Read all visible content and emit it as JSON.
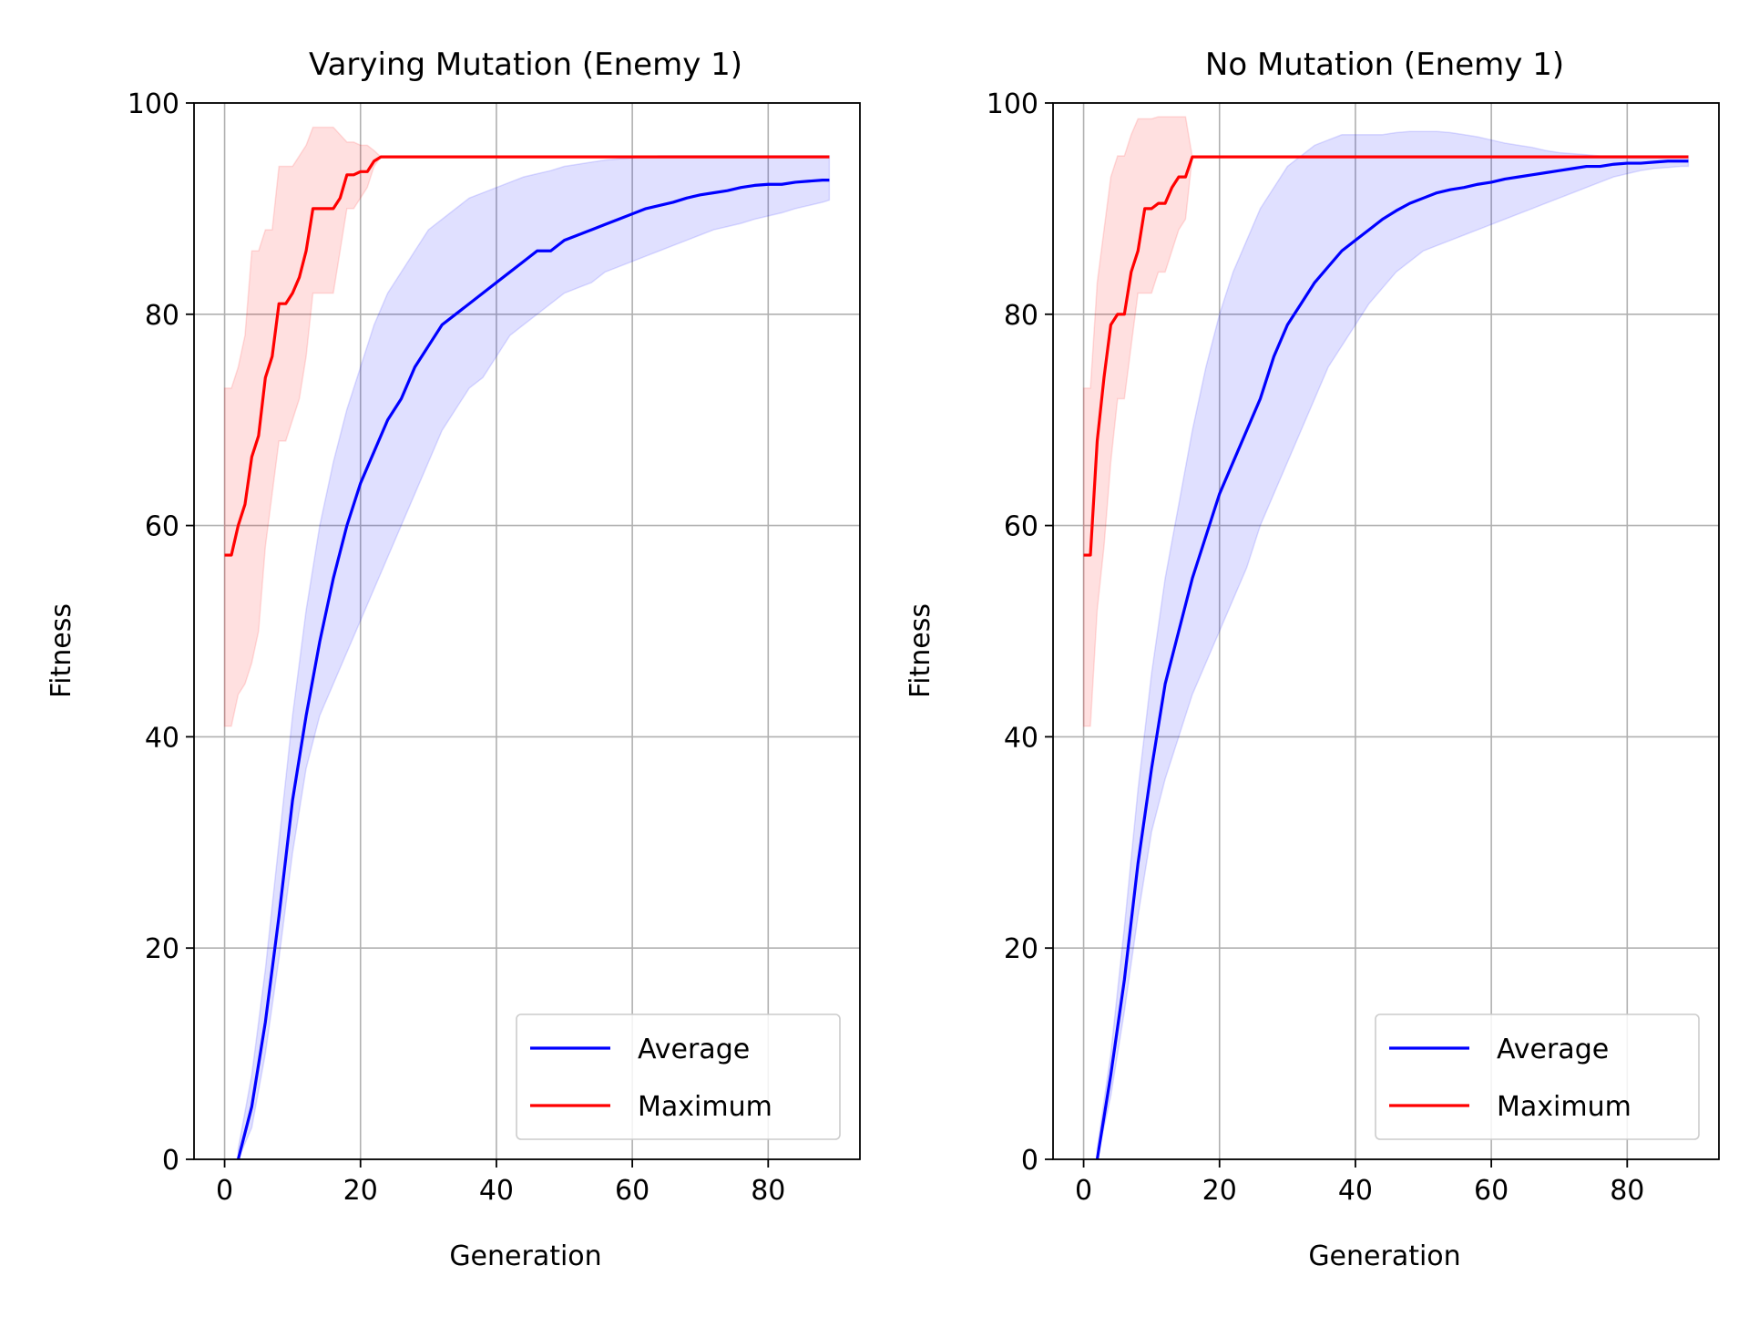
{
  "colors": {
    "average_line": "#0000ff",
    "maximum_line": "#ff0000",
    "average_band": "#0000ff",
    "maximum_band": "#ff0000",
    "grid": "#b0b0b0",
    "axes": "#000000"
  },
  "chart_data": [
    {
      "type": "line",
      "title": "Varying Mutation (Enemy 1)",
      "xlabel": "Generation",
      "ylabel": "Fitness",
      "xlim": [
        -4.5,
        93.5
      ],
      "ylim": [
        0,
        100
      ],
      "xticks": [
        0,
        20,
        40,
        60,
        80
      ],
      "yticks": [
        0,
        20,
        40,
        60,
        80,
        100
      ],
      "grid": true,
      "legend_position": "lower-right",
      "series": [
        {
          "name": "Average",
          "color": "#0000ff",
          "x": [
            2,
            4,
            6,
            8,
            10,
            12,
            14,
            16,
            18,
            20,
            22,
            24,
            26,
            28,
            30,
            32,
            34,
            36,
            38,
            40,
            42,
            44,
            46,
            48,
            50,
            52,
            54,
            56,
            58,
            60,
            62,
            64,
            66,
            68,
            70,
            72,
            74,
            76,
            78,
            80,
            82,
            84,
            86,
            88,
            89
          ],
          "values": [
            0,
            5,
            13,
            23,
            34,
            42,
            49,
            55,
            60,
            64,
            67,
            70,
            72,
            75,
            77,
            79,
            80,
            81,
            82,
            83,
            84,
            85,
            86,
            86,
            87,
            87.5,
            88,
            88.5,
            89,
            89.5,
            90,
            90.3,
            90.6,
            91,
            91.3,
            91.5,
            91.7,
            92,
            92.2,
            92.3,
            92.3,
            92.5,
            92.6,
            92.7,
            92.7
          ],
          "band_lower": [
            0,
            3,
            10,
            19,
            29,
            37,
            42,
            45,
            48,
            51,
            54,
            57,
            60,
            63,
            66,
            69,
            71,
            73,
            74,
            76,
            78,
            79,
            80,
            81,
            82,
            82.5,
            83,
            84,
            84.5,
            85,
            85.5,
            86,
            86.5,
            87,
            87.5,
            88,
            88.3,
            88.6,
            89,
            89.3,
            89.6,
            90,
            90.3,
            90.6,
            90.8
          ],
          "band_upper": [
            1,
            8,
            18,
            30,
            42,
            52,
            60,
            66,
            71,
            75,
            79,
            82,
            84,
            86,
            88,
            89,
            90,
            91,
            91.5,
            92,
            92.5,
            93,
            93.3,
            93.6,
            94,
            94.2,
            94.4,
            94.6,
            94.7,
            94.8,
            94.9,
            95,
            95,
            95,
            95,
            95,
            95,
            95,
            95,
            95,
            95,
            95,
            95,
            95,
            95
          ]
        },
        {
          "name": "Maximum",
          "color": "#ff0000",
          "x": [
            0,
            1,
            2,
            3,
            4,
            5,
            6,
            7,
            8,
            9,
            10,
            11,
            12,
            13,
            14,
            15,
            16,
            17,
            18,
            19,
            20,
            21,
            22,
            23,
            30,
            40,
            50,
            60,
            70,
            80,
            89
          ],
          "values": [
            57.2,
            57.2,
            60,
            62,
            66.5,
            68.5,
            74,
            76,
            81,
            81,
            82,
            83.5,
            86,
            90,
            90,
            90,
            90,
            91,
            93.2,
            93.2,
            93.5,
            93.5,
            94.5,
            94.9,
            94.9,
            94.9,
            94.9,
            94.9,
            94.9,
            94.9,
            94.9
          ],
          "band_lower": [
            41,
            41,
            44,
            45,
            47,
            50,
            58,
            63,
            68,
            68,
            70,
            72,
            76,
            82,
            82,
            82,
            82,
            86,
            90,
            90,
            91,
            92,
            94,
            94.9,
            94.9,
            94.9,
            94.9,
            94.9,
            94.9,
            94.9,
            94.9
          ],
          "band_upper": [
            73,
            73,
            75,
            78,
            86,
            86,
            88,
            88,
            94,
            94,
            94,
            95,
            96,
            97.7,
            97.7,
            97.7,
            97.7,
            97,
            96.3,
            96.3,
            96,
            96,
            95.5,
            94.9,
            94.9,
            94.9,
            94.9,
            94.9,
            94.9,
            94.9,
            94.9
          ]
        }
      ]
    },
    {
      "type": "line",
      "title": "No Mutation (Enemy 1)",
      "xlabel": "Generation",
      "ylabel": "Fitness",
      "xlim": [
        -4.5,
        93.5
      ],
      "ylim": [
        0,
        100
      ],
      "xticks": [
        0,
        20,
        40,
        60,
        80
      ],
      "yticks": [
        0,
        20,
        40,
        60,
        80,
        100
      ],
      "grid": true,
      "legend_position": "lower-right",
      "series": [
        {
          "name": "Average",
          "color": "#0000ff",
          "x": [
            2,
            4,
            6,
            8,
            10,
            12,
            14,
            16,
            18,
            20,
            22,
            24,
            26,
            28,
            30,
            32,
            34,
            36,
            38,
            40,
            42,
            44,
            46,
            48,
            50,
            52,
            54,
            56,
            58,
            60,
            62,
            64,
            66,
            68,
            70,
            72,
            74,
            76,
            78,
            80,
            82,
            84,
            86,
            88,
            89
          ],
          "values": [
            0,
            8,
            17,
            28,
            37,
            45,
            50,
            55,
            59,
            63,
            66,
            69,
            72,
            76,
            79,
            81,
            83,
            84.5,
            86,
            87,
            88,
            89,
            89.8,
            90.5,
            91,
            91.5,
            91.8,
            92,
            92.3,
            92.5,
            92.8,
            93,
            93.2,
            93.4,
            93.6,
            93.8,
            94,
            94,
            94.2,
            94.3,
            94.3,
            94.4,
            94.5,
            94.5,
            94.5
          ],
          "band_lower": [
            0,
            6,
            14,
            23,
            31,
            36,
            40,
            44,
            47,
            50,
            53,
            56,
            60,
            63,
            66,
            69,
            72,
            75,
            77,
            79,
            81,
            82.5,
            84,
            85,
            86,
            86.5,
            87,
            87.5,
            88,
            88.5,
            89,
            89.5,
            90,
            90.5,
            91,
            91.5,
            92,
            92.5,
            93,
            93.3,
            93.6,
            93.8,
            93.9,
            94,
            94
          ],
          "band_upper": [
            1,
            10,
            22,
            35,
            46,
            55,
            62,
            69,
            75,
            80,
            84,
            87,
            90,
            92,
            94,
            95,
            96,
            96.5,
            97,
            97,
            97,
            97,
            97.2,
            97.3,
            97.3,
            97.3,
            97.2,
            97,
            96.8,
            96.5,
            96.2,
            96,
            95.8,
            95.5,
            95.3,
            95.2,
            95.1,
            95,
            95,
            95,
            95,
            95,
            95,
            95,
            95
          ]
        },
        {
          "name": "Maximum",
          "color": "#ff0000",
          "x": [
            0,
            1,
            2,
            3,
            4,
            5,
            6,
            7,
            8,
            9,
            10,
            11,
            12,
            13,
            14,
            15,
            16,
            20,
            30,
            40,
            50,
            60,
            70,
            80,
            89
          ],
          "values": [
            57.2,
            57.2,
            68,
            74,
            79,
            80,
            80,
            84,
            86,
            90,
            90,
            90.5,
            90.5,
            92,
            93,
            93,
            94.9,
            94.9,
            94.9,
            94.9,
            94.9,
            94.9,
            94.9,
            94.9,
            94.9
          ],
          "band_lower": [
            41,
            41,
            52,
            58,
            66,
            72,
            72,
            77,
            82,
            82,
            82,
            84,
            84,
            86,
            88,
            89,
            94.9,
            94.9,
            94.9,
            94.9,
            94.9,
            94.9,
            94.9,
            94.9,
            94.9
          ],
          "band_upper": [
            73,
            73,
            83,
            88,
            93,
            95,
            95,
            97,
            98.5,
            98.5,
            98.5,
            98.7,
            98.7,
            98.7,
            98.7,
            98.7,
            94.9,
            94.9,
            94.9,
            94.9,
            94.9,
            94.9,
            94.9,
            94.9,
            94.9
          ]
        }
      ]
    }
  ]
}
